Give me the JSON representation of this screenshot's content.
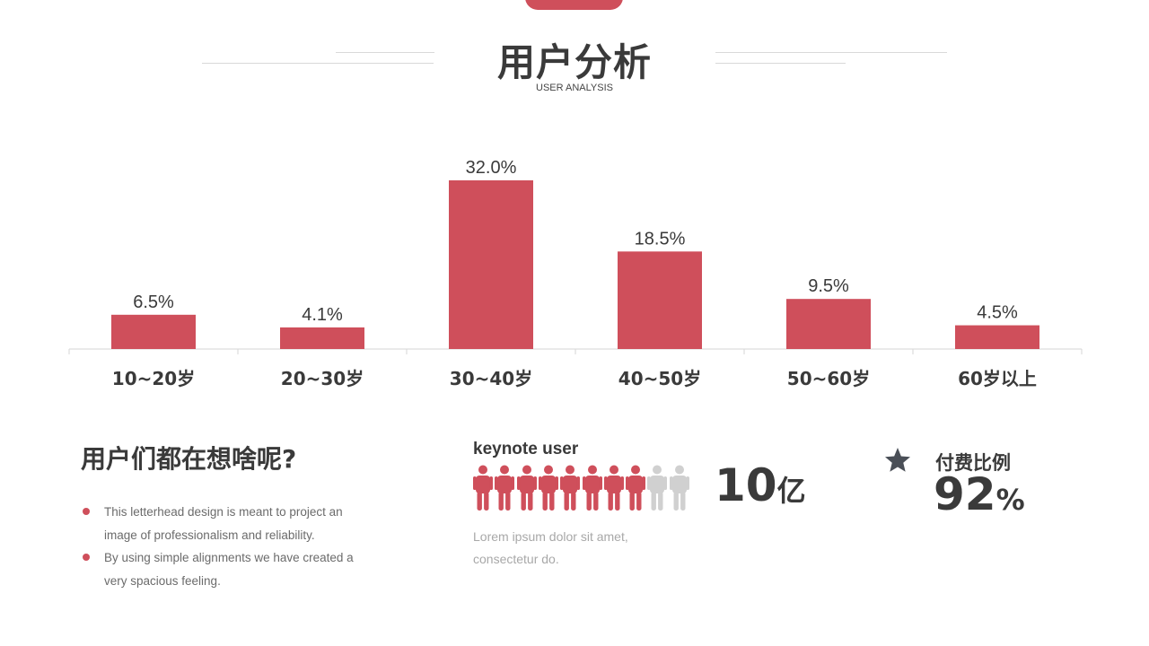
{
  "header": {
    "title": "用户分析",
    "subtitle": "USER ANALYSIS"
  },
  "chart_data": {
    "type": "bar",
    "categories": [
      "10~20岁",
      "20~30岁",
      "30~40岁",
      "40~50岁",
      "50~60岁",
      "60岁以上"
    ],
    "values": [
      6.5,
      4.1,
      32.0,
      18.5,
      9.5,
      4.5
    ],
    "data_labels": [
      "6.5%",
      "4.1%",
      "32.0%",
      "18.5%",
      "9.5%",
      "4.5%"
    ],
    "unit": "%",
    "ylim": [
      0,
      32
    ],
    "grid": false,
    "bar_color": "#cf4f5b"
  },
  "section": {
    "title": "用户们都在想啥呢?",
    "bullets": [
      "This letterhead design is meant to project an image of professionalism and reliability.",
      "By using simple alignments we have created a very spacious feeling."
    ]
  },
  "keynote": {
    "label": "keynote user",
    "people_total": 10,
    "people_highlighted": 8,
    "highlight_color": "#cf4f5b",
    "muted_color": "#d0d0d0",
    "description": "Lorem ipsum dolor sit amet, consectetur do.",
    "value": "10",
    "unit": "亿"
  },
  "paid": {
    "icon": "star-icon",
    "label": "付费比例",
    "value": "92",
    "unit": "%"
  },
  "colors": {
    "accent": "#cf4f5b",
    "text": "#3a3a3a",
    "muted": "#a8a8a8"
  }
}
